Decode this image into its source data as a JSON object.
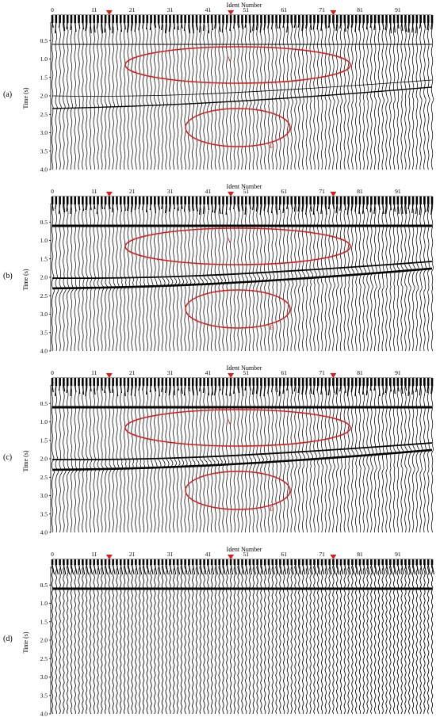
{
  "panel_shared": {
    "axis_title": "Ident  Number",
    "time_label": "Time (s)",
    "x_ticks": [
      "0",
      "11",
      "21",
      "31",
      "41",
      "51",
      "61",
      "71",
      "81",
      "91"
    ],
    "time_ticks": [
      "0.5",
      "1.0",
      "1.5",
      "2.0",
      "2.5",
      "3.0",
      "3.5",
      "4.0"
    ],
    "marker_color": "#e01818",
    "ellipse_color": "#e01818"
  },
  "panels": [
    {
      "id": "a",
      "label": "(a)",
      "ellipse_labels": [
        "A",
        "B"
      ]
    },
    {
      "id": "b",
      "label": "(b)",
      "ellipse_labels": [
        "A",
        "B"
      ]
    },
    {
      "id": "c",
      "label": "(c)",
      "ellipse_labels": [
        "A",
        "B"
      ]
    },
    {
      "id": "d",
      "label": "(d)",
      "ellipse_labels": []
    }
  ]
}
